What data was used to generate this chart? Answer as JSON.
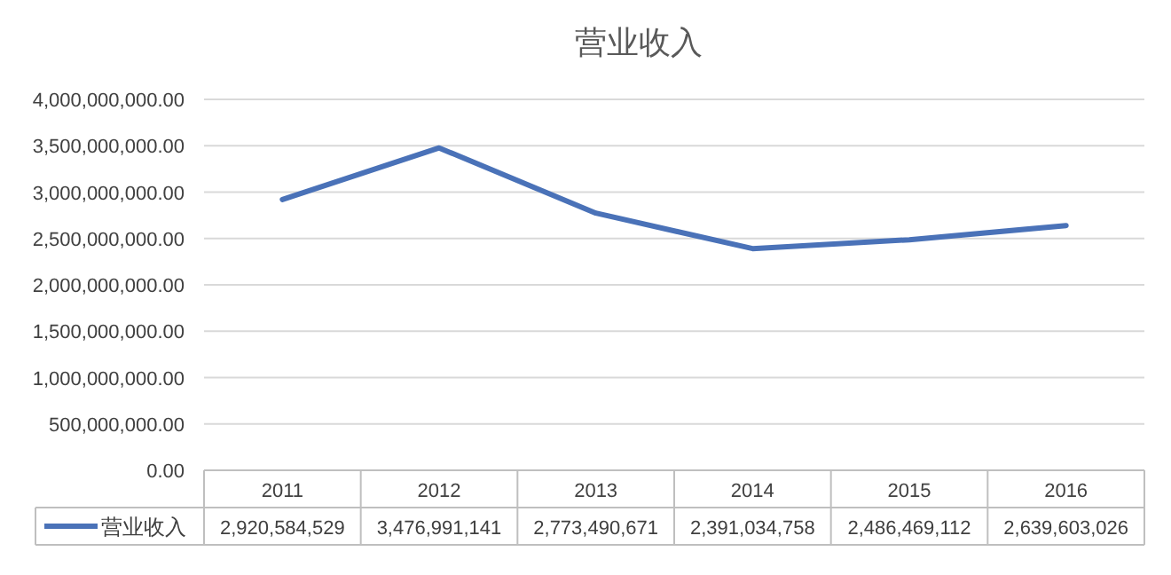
{
  "chart_data": {
    "type": "line",
    "title": "营业收入",
    "categories": [
      "2011",
      "2012",
      "2013",
      "2014",
      "2015",
      "2016"
    ],
    "series": [
      {
        "name": "营业收入",
        "color": "#4a72b8",
        "values": [
          2920584529,
          3476991141,
          2773490671,
          2391034758,
          2486469112,
          2639603026
        ],
        "value_labels": [
          "2,920,584,529",
          "3,476,991,141",
          "2,773,490,671",
          "2,391,034,758",
          "2,486,469,112",
          "2,639,603,026"
        ]
      }
    ],
    "ylim": [
      0,
      4000000000
    ],
    "yticks": [
      {
        "value": 0,
        "label": "0.00"
      },
      {
        "value": 500000000,
        "label": "500,000,000.00"
      },
      {
        "value": 1000000000,
        "label": "1,000,000,000.00"
      },
      {
        "value": 1500000000,
        "label": "1,500,000,000.00"
      },
      {
        "value": 2000000000,
        "label": "2,000,000,000.00"
      },
      {
        "value": 2500000000,
        "label": "2,500,000,000.00"
      },
      {
        "value": 3000000000,
        "label": "3,000,000,000.00"
      },
      {
        "value": 3500000000,
        "label": "3,500,000,000.00"
      },
      {
        "value": 4000000000,
        "label": "4,000,000,000.00"
      }
    ],
    "grid": "y",
    "legend": "bottom",
    "marker": "none",
    "line_style": "solid"
  }
}
